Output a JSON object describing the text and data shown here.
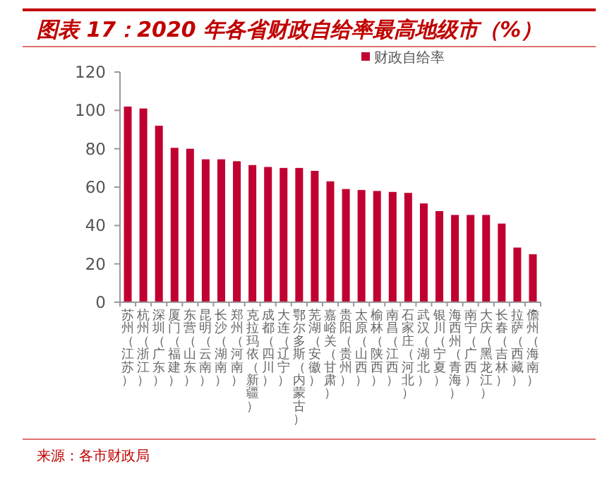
{
  "chart_data": {
    "type": "bar",
    "title": "图表 17：2020 年各省财政自给率最高地级市（%）",
    "categories": [
      "苏州（江苏）",
      "杭州（浙江）",
      "深圳（广东）",
      "厦门（福建）",
      "东营（山东）",
      "昆明（云南）",
      "长沙（湖南）",
      "郑州（河南）",
      "克拉玛依（新疆）",
      "成都（四川）",
      "大连（辽宁）",
      "鄂尔多斯（内蒙古）",
      "芜湖（安徽）",
      "嘉峪关（甘肃）",
      "贵阳（贵州）",
      "太原（山西）",
      "榆林（陕西）",
      "南昌（江西）",
      "石家庄（河北）",
      "武汉（湖北）",
      "银川（宁夏）",
      "海西州（青海）",
      "南宁（广西）",
      "大庆（黑龙江）",
      "长春（吉林）",
      "拉萨（西藏）",
      "儋州（海南）"
    ],
    "series": [
      {
        "name": "财政自给率",
        "color": "#c00030",
        "values": [
          102,
          101,
          92,
          80.5,
          80,
          74.5,
          74.5,
          73.5,
          71.5,
          70.5,
          70,
          70,
          68.5,
          63,
          59,
          58.5,
          58,
          57.5,
          57,
          51.5,
          47.5,
          45.5,
          45.5,
          45.5,
          41,
          28.5,
          25
        ]
      }
    ],
    "ylim": [
      0,
      120
    ],
    "yticks": [
      0,
      20,
      40,
      60,
      80,
      100,
      120
    ],
    "legend": "top",
    "annotations": [
      "来源：各市财政局"
    ]
  }
}
